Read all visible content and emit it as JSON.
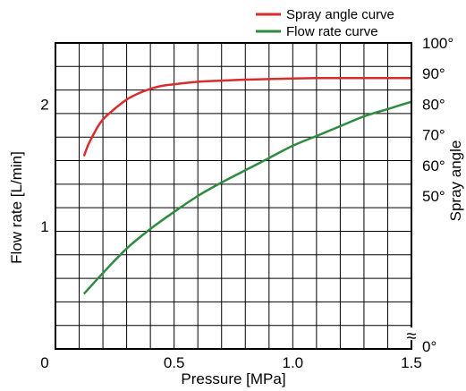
{
  "chart_data": {
    "type": "line",
    "legend_position": "top-right",
    "grid": true,
    "xlabel": "Pressure [MPa]",
    "ylabel_left": "Flow rate [L/min]",
    "ylabel_right": "Spray angle",
    "xlim": [
      0,
      1.5
    ],
    "ylim_left": [
      0,
      2.5
    ],
    "ylim_right": [
      0,
      100
    ],
    "right_axis_break": "≈",
    "x_ticks": [
      {
        "value": 0,
        "label": "0"
      },
      {
        "value": 0.5,
        "label": "0.5"
      },
      {
        "value": 1.0,
        "label": "1.0"
      },
      {
        "value": 1.5,
        "label": "1.5"
      }
    ],
    "y_left_ticks": [
      {
        "value": 1,
        "label": "1"
      },
      {
        "value": 2,
        "label": "2"
      }
    ],
    "y_right_ticks": [
      {
        "value": 0,
        "label": "0°"
      },
      {
        "value": 50,
        "label": "50°"
      },
      {
        "value": 60,
        "label": "60°"
      },
      {
        "value": 70,
        "label": "70°"
      },
      {
        "value": 80,
        "label": "80°"
      },
      {
        "value": 90,
        "label": "90°"
      },
      {
        "value": 100,
        "label": "100°"
      }
    ],
    "series": [
      {
        "name": "Spray angle curve",
        "color": "#d62d2d",
        "axis": "right",
        "x": [
          0.12,
          0.14,
          0.17,
          0.2,
          0.25,
          0.3,
          0.35,
          0.4,
          0.45,
          0.5,
          0.6,
          0.7,
          0.8,
          0.9,
          1.0,
          1.1,
          1.2,
          1.3,
          1.4,
          1.5
        ],
        "y": [
          63.0,
          67.0,
          71.5,
          75.0,
          78.5,
          81.5,
          83.5,
          85.0,
          86.0,
          86.5,
          87.3,
          87.7,
          88.0,
          88.2,
          88.4,
          88.5,
          88.5,
          88.5,
          88.5,
          88.5
        ]
      },
      {
        "name": "Flow rate curve",
        "color": "#2e8b3f",
        "axis": "left",
        "x": [
          0.12,
          0.2,
          0.3,
          0.4,
          0.5,
          0.6,
          0.7,
          0.8,
          0.9,
          1.0,
          1.1,
          1.2,
          1.3,
          1.4,
          1.5
        ],
        "y": [
          0.45,
          0.62,
          0.82,
          0.98,
          1.12,
          1.25,
          1.36,
          1.46,
          1.56,
          1.66,
          1.74,
          1.82,
          1.9,
          1.96,
          2.02
        ]
      }
    ]
  }
}
